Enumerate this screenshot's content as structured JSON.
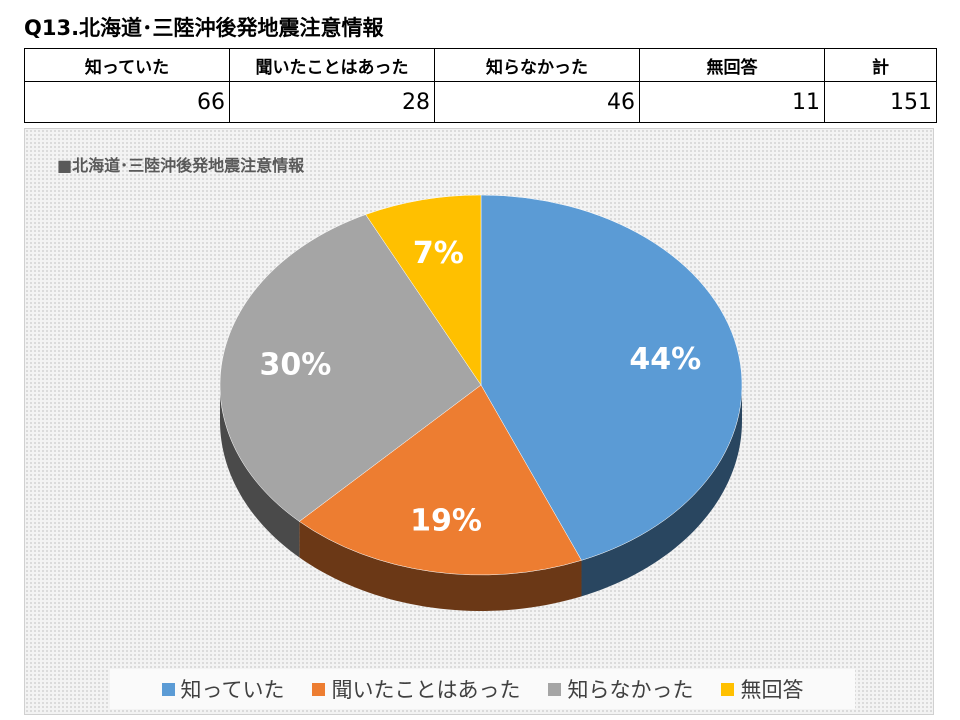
{
  "page_title": "Q13.北海道･三陸沖後発地震注意情報",
  "table": {
    "headers": [
      "知っていた",
      "聞いたことはあった",
      "知らなかった",
      "無回答",
      "計"
    ],
    "values": [
      "66",
      "28",
      "46",
      "11",
      "151"
    ]
  },
  "chart_data": {
    "type": "pie",
    "title": "■北海道･三陸沖後発地震注意情報",
    "categories": [
      "知っていた",
      "聞いたことはあった",
      "知らなかった",
      "無回答"
    ],
    "values": [
      66,
      28,
      46,
      11
    ],
    "data_labels": [
      "44%",
      "19%",
      "30%",
      "7%"
    ],
    "colors": [
      "#5b9bd5",
      "#ed7d31",
      "#a5a5a5",
      "#ffc000"
    ],
    "legend_position": "bottom",
    "style": "3d"
  }
}
